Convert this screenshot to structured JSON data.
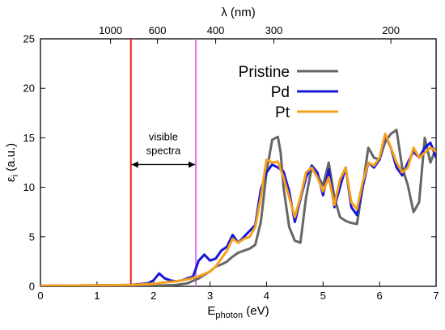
{
  "chart_data": {
    "type": "line",
    "xlabel_main": "E",
    "xlabel_sub": "photon",
    "xlabel_unit": " (eV)",
    "ylabel_main": "ε",
    "ylabel_sub": "i",
    "ylabel_unit": " (a.u.)",
    "top_axis_label": "λ (nm)",
    "xlim": [
      0,
      7
    ],
    "ylim": [
      0,
      25
    ],
    "x_ticks": [
      0,
      1,
      2,
      3,
      4,
      5,
      6,
      7
    ],
    "y_ticks": [
      0,
      5,
      10,
      15,
      20,
      25
    ],
    "top_ticks": [
      {
        "label": "1000",
        "E": 1.24
      },
      {
        "label": "600",
        "E": 2.07
      },
      {
        "label": "400",
        "E": 3.1
      },
      {
        "label": "300",
        "E": 4.13
      },
      {
        "label": "200",
        "E": 6.2
      }
    ],
    "grid": false,
    "legend_position": "top-right",
    "series": [
      {
        "name": "Pristine",
        "color": "#666666",
        "x": [
          0,
          1.0,
          1.6,
          2.0,
          2.4,
          2.6,
          2.8,
          3.0,
          3.1,
          3.2,
          3.3,
          3.4,
          3.5,
          3.6,
          3.7,
          3.8,
          3.9,
          4.0,
          4.1,
          4.2,
          4.25,
          4.3,
          4.4,
          4.5,
          4.6,
          4.7,
          4.8,
          4.9,
          5.0,
          5.1,
          5.2,
          5.3,
          5.4,
          5.5,
          5.6,
          5.7,
          5.8,
          5.9,
          6.0,
          6.1,
          6.2,
          6.3,
          6.4,
          6.5,
          6.6,
          6.7,
          6.8,
          6.9,
          7.0
        ],
        "y": [
          0.05,
          0.05,
          0.05,
          0.05,
          0.15,
          0.3,
          0.8,
          1.5,
          2.0,
          2.2,
          2.5,
          3.0,
          3.4,
          3.6,
          3.8,
          4.2,
          6.5,
          11.5,
          14.8,
          15.1,
          13.5,
          10.0,
          6.0,
          4.6,
          4.4,
          9.0,
          12.0,
          11.2,
          10.2,
          12.5,
          9.0,
          7.0,
          6.6,
          6.4,
          6.3,
          10.0,
          14.0,
          13.0,
          12.8,
          14.6,
          15.4,
          15.8,
          12.0,
          10.2,
          7.5,
          8.5,
          15.0,
          12.5,
          14.0
        ]
      },
      {
        "name": "Pd",
        "color": "#1818d8",
        "x": [
          0,
          1.0,
          1.6,
          1.9,
          2.0,
          2.1,
          2.2,
          2.3,
          2.4,
          2.5,
          2.6,
          2.7,
          2.8,
          2.9,
          3.0,
          3.1,
          3.2,
          3.3,
          3.4,
          3.5,
          3.6,
          3.7,
          3.8,
          3.9,
          4.0,
          4.1,
          4.2,
          4.3,
          4.4,
          4.5,
          4.6,
          4.7,
          4.8,
          4.9,
          5.0,
          5.1,
          5.2,
          5.3,
          5.4,
          5.5,
          5.6,
          5.7,
          5.8,
          5.9,
          6.0,
          6.1,
          6.2,
          6.3,
          6.4,
          6.5,
          6.6,
          6.7,
          6.8,
          6.9,
          7.0
        ],
        "y": [
          0.05,
          0.1,
          0.15,
          0.3,
          0.6,
          1.3,
          0.8,
          0.6,
          0.5,
          0.6,
          0.8,
          1.0,
          2.6,
          3.2,
          2.6,
          2.8,
          3.6,
          4.0,
          5.2,
          4.4,
          5.0,
          5.6,
          6.2,
          9.8,
          11.5,
          12.3,
          12.0,
          11.6,
          9.6,
          6.5,
          8.8,
          11.0,
          12.2,
          11.5,
          9.2,
          11.8,
          8.0,
          10.0,
          12.0,
          8.0,
          7.2,
          10.0,
          12.5,
          12.0,
          12.8,
          15.2,
          14.0,
          12.0,
          11.2,
          12.5,
          13.6,
          13.0,
          14.0,
          14.5,
          13.0
        ]
      },
      {
        "name": "Pt",
        "color": "#f5a01a",
        "x": [
          0,
          1.0,
          1.6,
          2.0,
          2.2,
          2.4,
          2.6,
          2.8,
          3.0,
          3.1,
          3.2,
          3.3,
          3.4,
          3.5,
          3.6,
          3.7,
          3.8,
          3.9,
          4.0,
          4.1,
          4.2,
          4.3,
          4.4,
          4.5,
          4.6,
          4.7,
          4.8,
          4.9,
          5.0,
          5.1,
          5.2,
          5.3,
          5.4,
          5.5,
          5.6,
          5.7,
          5.8,
          5.9,
          6.0,
          6.1,
          6.2,
          6.3,
          6.4,
          6.5,
          6.6,
          6.7,
          6.8,
          6.9,
          7.0
        ],
        "y": [
          0.05,
          0.1,
          0.15,
          0.25,
          0.4,
          0.5,
          0.7,
          1.0,
          1.5,
          2.0,
          2.8,
          3.6,
          4.8,
          4.4,
          4.8,
          5.0,
          6.0,
          9.0,
          12.8,
          12.5,
          12.6,
          11.0,
          9.0,
          7.0,
          9.0,
          11.5,
          12.0,
          11.0,
          9.6,
          11.0,
          8.2,
          10.8,
          12.0,
          8.5,
          7.8,
          10.5,
          12.5,
          12.2,
          13.0,
          15.4,
          14.0,
          12.5,
          11.5,
          12.0,
          14.0,
          13.0,
          13.5,
          14.0,
          13.6
        ]
      }
    ],
    "vertical_lines": [
      {
        "E": 1.6,
        "color": "#e8201a"
      },
      {
        "E": 2.75,
        "color": "#e070e8"
      }
    ],
    "annotation": {
      "lines": [
        "visible",
        "spectra"
      ],
      "x_from": 1.6,
      "x_to": 2.75,
      "y": 12.3
    }
  }
}
